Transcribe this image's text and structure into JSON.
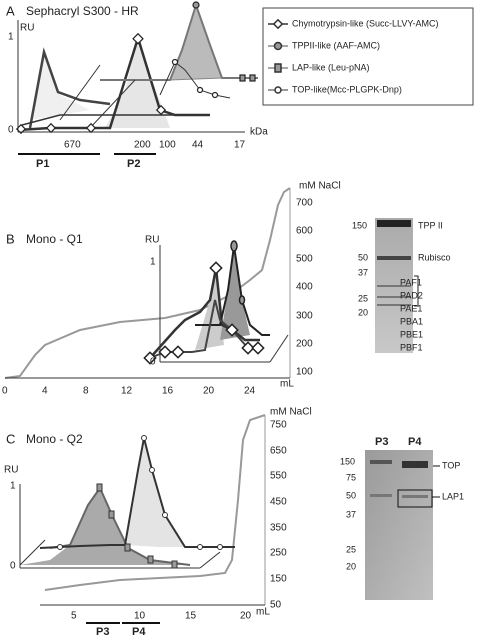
{
  "panel_a": {
    "label": "A",
    "title": "Sephacryl S300 - HR",
    "y_axis_label": "RU",
    "y_ticks": [
      1,
      0
    ],
    "x_unit": "kDa",
    "x_ticks": [
      670,
      200,
      100,
      44,
      17
    ],
    "pools": [
      "P1",
      "P2"
    ],
    "legend": [
      "Chymotrypsin-like (Succ-LLVY-AMC)",
      "TPPII-like (AAF-AMC)",
      "LAP-like (Leu-pNA)",
      "TOP-like(Mcc-PLGPK-Dnp)"
    ]
  },
  "panel_b": {
    "label": "B",
    "title": "Mono - Q1",
    "y_axis_label": "RU",
    "y_ticks": [
      1,
      0
    ],
    "x_unit": "mL",
    "x_ticks": [
      0,
      4,
      8,
      12,
      16,
      20,
      24
    ],
    "y2_axis_label": "mM NaCl",
    "y2_ticks": [
      700,
      600,
      500,
      400,
      300,
      200,
      100
    ],
    "gel": {
      "markers": [
        150,
        50,
        37,
        25,
        20
      ],
      "bands": [
        "TPP II",
        "Rubisco",
        "PAF1",
        "PAD2",
        "PAE1",
        "PBA1",
        "PBE1",
        "PBF1"
      ]
    }
  },
  "panel_c": {
    "label": "C",
    "title": "Mono - Q2",
    "y_axis_label": "RU",
    "y_ticks": [
      1,
      0
    ],
    "x_unit": "mL",
    "x_ticks": [
      5,
      10,
      15,
      20
    ],
    "y2_axis_label": "mM NaCl",
    "y2_ticks": [
      750,
      650,
      550,
      450,
      350,
      250,
      150,
      50
    ],
    "pools": [
      "P3",
      "P4"
    ],
    "gel": {
      "lanes": [
        "P3",
        "P4"
      ],
      "markers": [
        150,
        75,
        50,
        37,
        25,
        20
      ],
      "bands": [
        "TOP",
        "LAP1"
      ]
    }
  }
}
